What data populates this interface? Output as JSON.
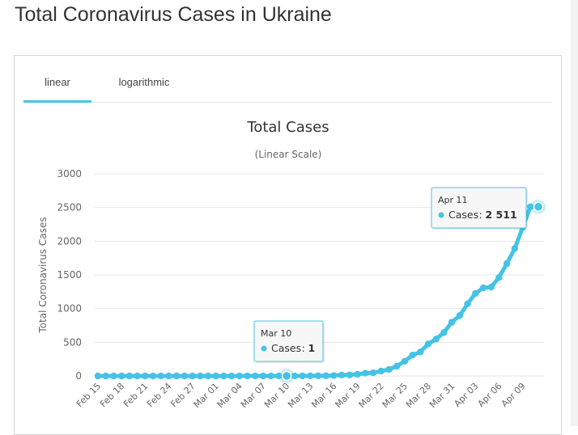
{
  "page": {
    "title": "Total Coronavirus Cases in Ukraine"
  },
  "tabs": [
    {
      "label": "linear",
      "active": true
    },
    {
      "label": "logarithmic",
      "active": false
    }
  ],
  "colors": {
    "series": "#45c3e6",
    "accent": "#45c3e6"
  },
  "chart_data": {
    "type": "line",
    "title": "Total Cases",
    "subtitle": "(Linear Scale)",
    "ylabel": "Total Coronavirus Cases",
    "xlabel": "",
    "ylim": [
      0,
      3000
    ],
    "yticks": [
      "0",
      "500",
      "1000",
      "1500",
      "2000",
      "2500",
      "3000"
    ],
    "grid": true,
    "legend": "none",
    "x": [
      "Feb 15",
      "Feb 16",
      "Feb 17",
      "Feb 18",
      "Feb 19",
      "Feb 20",
      "Feb 21",
      "Feb 22",
      "Feb 23",
      "Feb 24",
      "Feb 25",
      "Feb 26",
      "Feb 27",
      "Feb 28",
      "Feb 29",
      "Mar 01",
      "Mar 02",
      "Mar 03",
      "Mar 04",
      "Mar 05",
      "Mar 06",
      "Mar 07",
      "Mar 08",
      "Mar 09",
      "Mar 10",
      "Mar 11",
      "Mar 12",
      "Mar 13",
      "Mar 14",
      "Mar 15",
      "Mar 16",
      "Mar 17",
      "Mar 18",
      "Mar 19",
      "Mar 20",
      "Mar 21",
      "Mar 22",
      "Mar 23",
      "Mar 24",
      "Mar 25",
      "Mar 26",
      "Mar 27",
      "Mar 28",
      "Mar 29",
      "Mar 30",
      "Mar 31",
      "Apr 01",
      "Apr 02",
      "Apr 03",
      "Apr 04",
      "Apr 05",
      "Apr 06",
      "Apr 07",
      "Apr 08",
      "Apr 09",
      "Apr 10",
      "Apr 11"
    ],
    "xtick_labels": [
      "Feb 15",
      "Feb 18",
      "Feb 21",
      "Feb 24",
      "Feb 27",
      "Mar 01",
      "Mar 04",
      "Mar 07",
      "Mar 10",
      "Mar 13",
      "Mar 16",
      "Mar 19",
      "Mar 22",
      "Mar 25",
      "Mar 28",
      "Mar 31",
      "Apr 03",
      "Apr 06",
      "Apr 09"
    ],
    "series": [
      {
        "name": "Cases",
        "values": [
          0,
          0,
          0,
          0,
          0,
          0,
          0,
          0,
          0,
          0,
          0,
          0,
          0,
          0,
          0,
          0,
          0,
          0,
          1,
          1,
          1,
          1,
          1,
          1,
          1,
          1,
          1,
          2,
          3,
          3,
          7,
          14,
          16,
          26,
          41,
          47,
          73,
          97,
          145,
          218,
          310,
          356,
          475,
          548,
          645,
          798,
          897,
          1072,
          1225,
          1308,
          1319,
          1462,
          1668,
          1892,
          2203,
          2511,
          2511
        ]
      }
    ],
    "tooltips": [
      {
        "date": "Mar 10",
        "series": "Cases",
        "value": "1"
      },
      {
        "date": "Apr 11",
        "series": "Cases",
        "value": "2 511"
      }
    ]
  }
}
